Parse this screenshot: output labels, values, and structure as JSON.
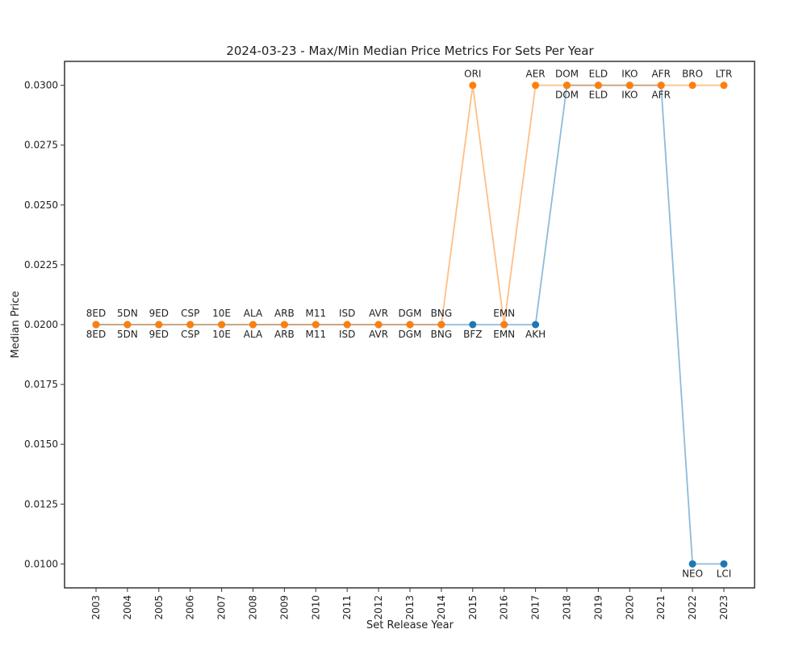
{
  "chart_data": {
    "type": "line",
    "title": "2024-03-23 - Max/Min Median Price Metrics For Sets Per Year",
    "xlabel": "Set Release Year",
    "ylabel": "Median Price",
    "x": [
      "2003",
      "2004",
      "2005",
      "2006",
      "2007",
      "2008",
      "2009",
      "2010",
      "2011",
      "2012",
      "2013",
      "2014",
      "2015",
      "2016",
      "2017",
      "2018",
      "2019",
      "2020",
      "2021",
      "2022",
      "2023"
    ],
    "ylim": [
      0.009,
      0.031
    ],
    "yticks": [
      "0.0100",
      "0.0125",
      "0.0150",
      "0.0175",
      "0.0200",
      "0.0225",
      "0.0250",
      "0.0275",
      "0.0300"
    ],
    "grid": false,
    "series": [
      {
        "color": "#1f77b4",
        "values": [
          0.02,
          0.02,
          0.02,
          0.02,
          0.02,
          0.02,
          0.02,
          0.02,
          0.02,
          0.02,
          0.02,
          0.02,
          0.02,
          0.02,
          0.02,
          0.03,
          0.03,
          0.03,
          0.03,
          0.01,
          0.01
        ],
        "labels": [
          "8ED",
          "5DN",
          "9ED",
          "CSP",
          "10E",
          "ALA",
          "ARB",
          "M11",
          "ISD",
          "AVR",
          "DGM",
          "BNG",
          "BFZ",
          "EMN",
          "AKH",
          "DOM",
          "ELD",
          "IKO",
          "AFR",
          "NEO",
          "LCI"
        ],
        "label_position": "below"
      },
      {
        "color": "#ff7f0e",
        "values": [
          0.02,
          0.02,
          0.02,
          0.02,
          0.02,
          0.02,
          0.02,
          0.02,
          0.02,
          0.02,
          0.02,
          0.02,
          0.03,
          0.02,
          0.03,
          0.03,
          0.03,
          0.03,
          0.03,
          0.03,
          0.03
        ],
        "labels": [
          "8ED",
          "5DN",
          "9ED",
          "CSP",
          "10E",
          "ALA",
          "ARB",
          "M11",
          "ISD",
          "AVR",
          "DGM",
          "BNG",
          "ORI",
          "EMN",
          "AER",
          "DOM",
          "ELD",
          "IKO",
          "AFR",
          "BRO",
          "LTR"
        ],
        "label_position": "above"
      }
    ]
  }
}
